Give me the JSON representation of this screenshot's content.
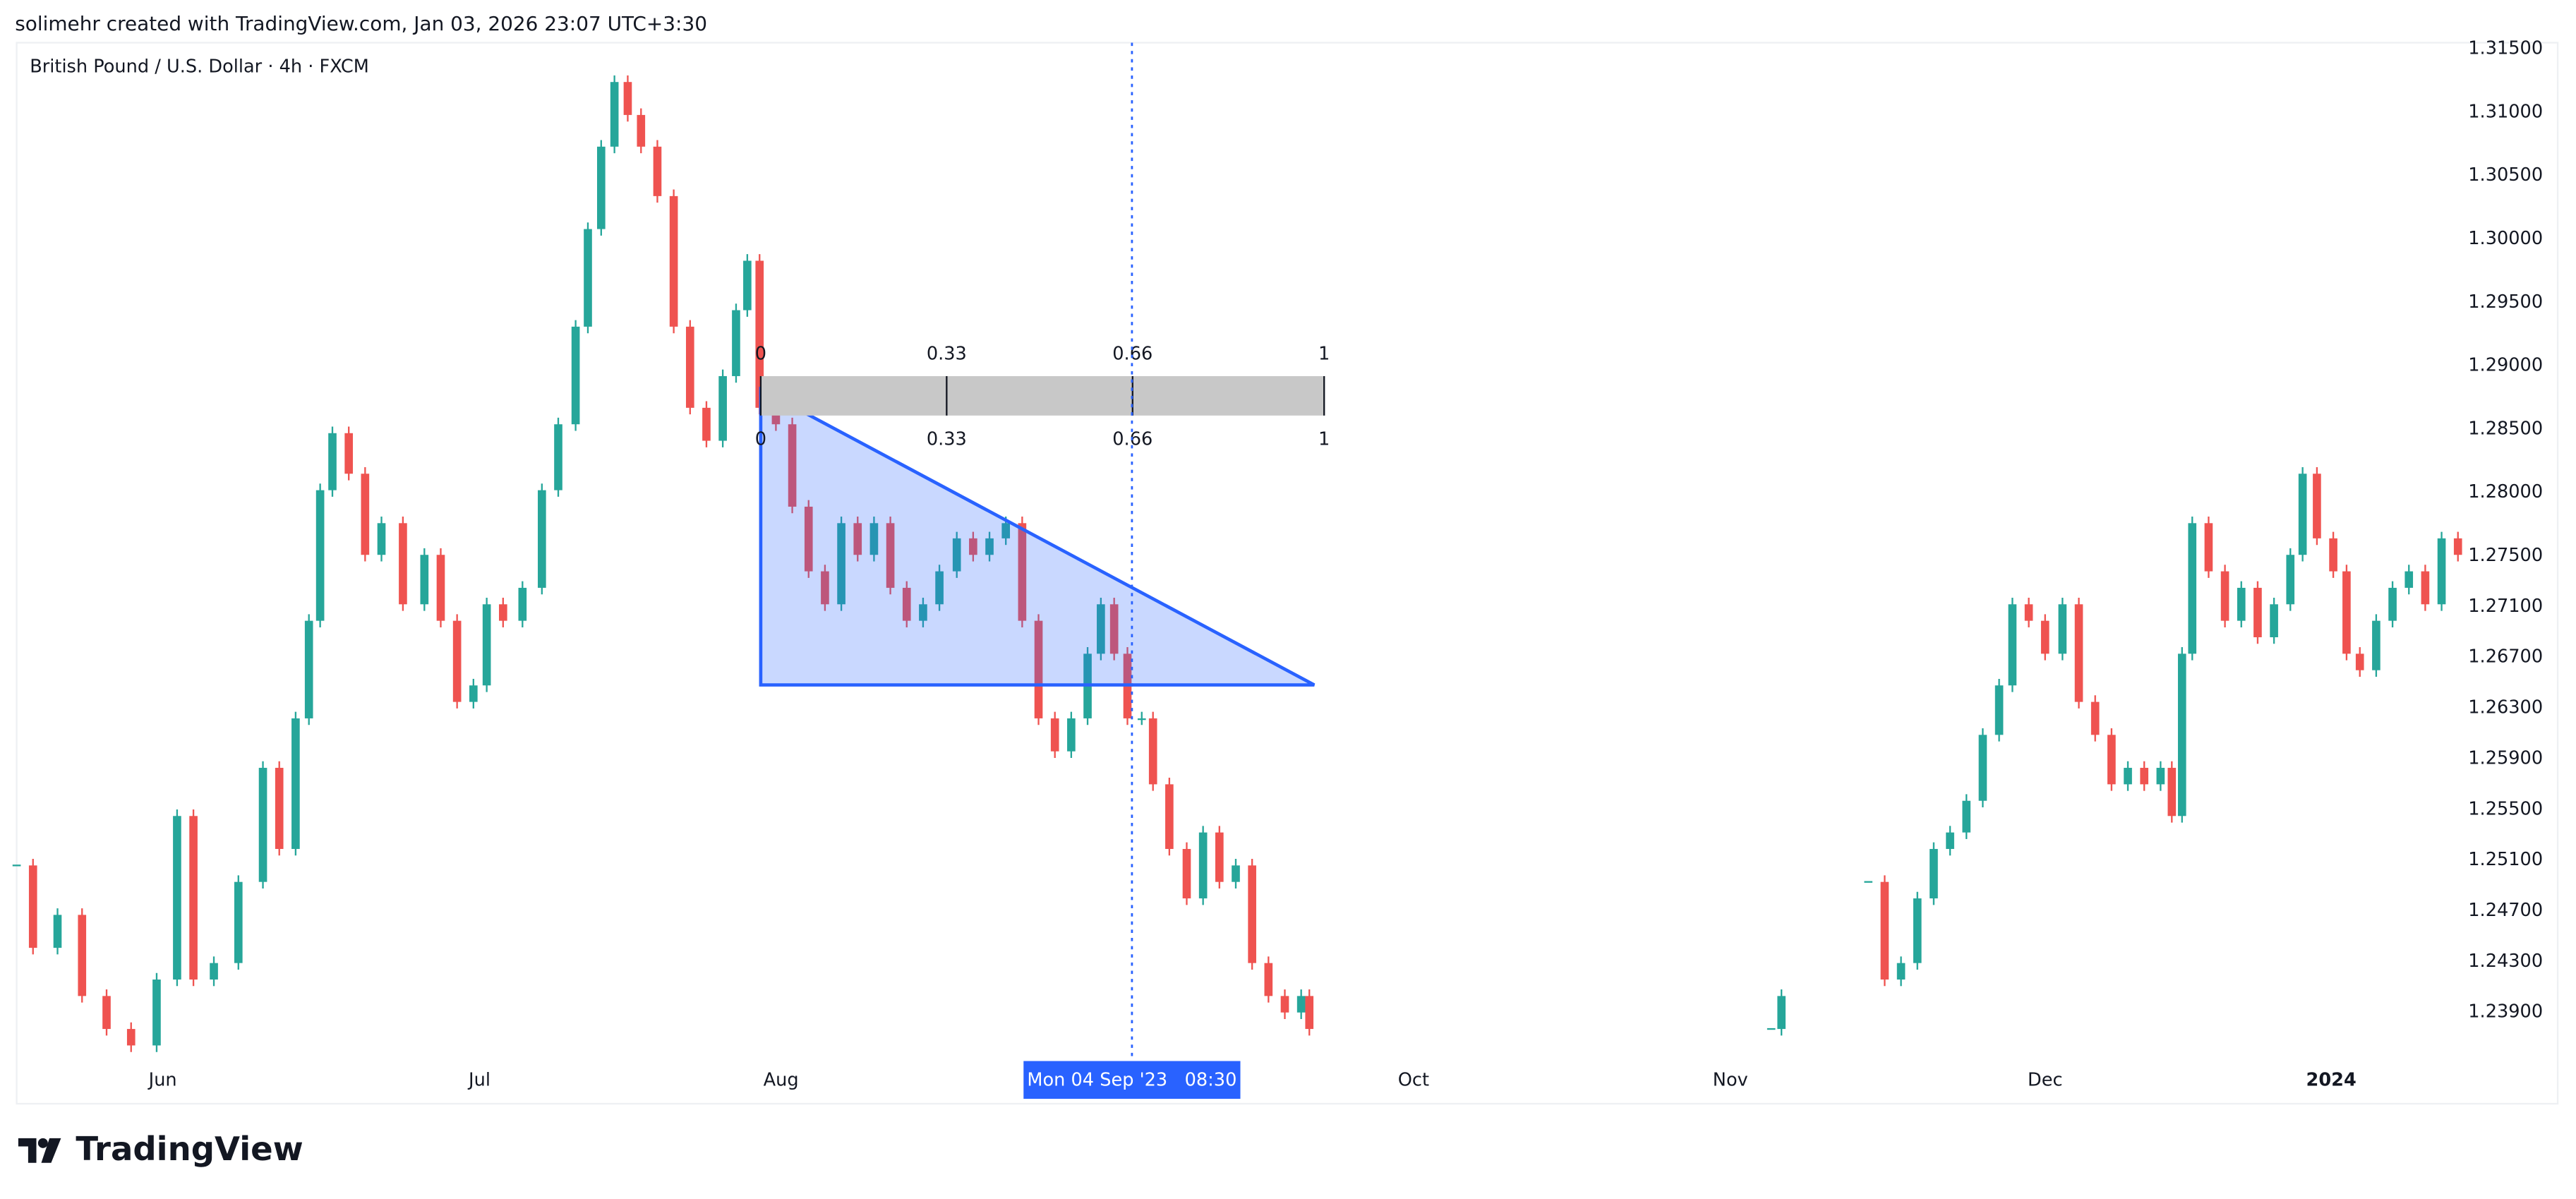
{
  "header": {
    "caption": "solimehr created with TradingView.com, Jan 03, 2026 23:07 UTC+3:30"
  },
  "chart_data": {
    "type": "candlestick",
    "title": "British Pound / U.S. Dollar · 4h · FXCM",
    "up_color": "#26a69a",
    "down_color": "#ef5350",
    "x": [
      -14.3,
      -12.7,
      -10.3,
      -7.9,
      -5.5,
      -3.1,
      -0.6,
      1.4,
      3.0,
      5.0,
      7.4,
      9.8,
      11.4,
      13.0,
      14.3,
      15.4,
      16.6,
      18.2,
      19.8,
      21.4,
      23.5,
      25.6,
      27.2,
      28.8,
      30.4,
      31.7,
      33.3,
      35.2,
      37.1,
      38.7,
      40.4,
      41.6,
      42.9,
      44.2,
      45.5,
      46.8,
      48.4,
      50.0,
      51.6,
      53.2,
      54.8,
      56.1,
      57.2,
      58.4,
      60.0,
      61.6,
      63.2,
      64.8,
      66.4,
      68.0,
      69.6,
      71.2,
      72.8,
      74.4,
      76.0,
      77.7,
      79.3,
      80.9,
      82.5,
      84.1,
      85.7,
      87.3,
      88.9,
      90.5,
      91.8,
      93.1,
      94.4,
      95.8,
      96.9,
      98.5,
      100.2,
      101.8,
      103.4,
      105.0,
      106.6,
      108.2,
      109.8,
      111.4,
      112.2,
      135.0,
      157.4,
      158.4,
      162.0,
      166.9,
      168.5,
      170.1,
      171.7,
      173.3,
      174.9,
      176.5,
      178.1,
      179.7,
      181.0,
      182.6,
      184.2,
      185.9,
      187.5,
      189.1,
      190.7,
      192.3,
      193.9,
      195.5,
      196.6,
      197.6,
      198.6,
      200.2,
      201.8,
      203.4,
      205.0,
      206.6,
      208.2,
      209.4,
      210.8,
      212.4,
      213.7,
      215.0,
      216.6,
      218.2,
      219.8,
      221.4,
      223.0,
      224.6
    ],
    "values": [
      1.2506,
      1.2441,
      1.2467,
      1.2403,
      1.2377,
      1.2364,
      1.2416,
      1.2545,
      1.2416,
      1.2429,
      1.2493,
      1.2583,
      1.2519,
      1.2622,
      1.2699,
      1.2802,
      1.2847,
      1.2815,
      1.2751,
      1.2776,
      1.2712,
      1.2751,
      1.2699,
      1.2635,
      1.2648,
      1.2712,
      1.2699,
      1.2725,
      1.2802,
      1.2854,
      1.2931,
      1.3008,
      1.3073,
      1.3124,
      1.3098,
      1.3073,
      1.3034,
      1.2931,
      1.2867,
      1.2841,
      1.2892,
      1.2944,
      1.2983,
      1.2867,
      1.2854,
      1.2789,
      1.2738,
      1.2712,
      1.2776,
      1.2751,
      1.2776,
      1.2725,
      1.2699,
      1.2712,
      1.2738,
      1.2764,
      1.2751,
      1.2764,
      1.2776,
      1.2699,
      1.2622,
      1.2596,
      1.2622,
      1.2673,
      1.2712,
      1.2673,
      1.2622,
      1.2622,
      1.257,
      1.2519,
      1.248,
      1.2532,
      1.2493,
      1.2506,
      1.2429,
      1.2403,
      1.239,
      1.2403,
      1.2377,
      null,
      1.2377,
      1.2403,
      null,
      1.2493,
      1.2416,
      1.2429,
      1.248,
      1.2519,
      1.2532,
      1.2557,
      1.2609,
      1.2648,
      1.2712,
      1.2699,
      1.2673,
      1.2712,
      1.2635,
      1.2609,
      1.257,
      1.2583,
      1.257,
      1.2583,
      1.2545,
      1.2673,
      1.2776,
      1.2738,
      1.2699,
      1.2725,
      1.2686,
      1.2712,
      1.2751,
      1.2815,
      1.2764,
      1.2738,
      1.2673,
      1.266,
      1.2699,
      1.2725,
      1.2738,
      1.2712,
      1.2764,
      1.2751
    ],
    "xlim": [
      -14.3,
      225.2
    ],
    "xticks": [
      {
        "value": 0,
        "label": "Jun"
      },
      {
        "value": 31.0,
        "label": "Jul"
      },
      {
        "value": 60.5,
        "label": "Aug"
      },
      {
        "value": 122.4,
        "label": "Oct"
      },
      {
        "value": 153.4,
        "label": "Nov"
      },
      {
        "value": 184.2,
        "label": "Dec"
      },
      {
        "value": 212.2,
        "label": "2024"
      }
    ],
    "ylim": [
      1.2353,
      1.3155
    ],
    "yticks": [
      {
        "value": 1.315,
        "label": "1.31500"
      },
      {
        "value": 1.31,
        "label": "1.31000"
      },
      {
        "value": 1.305,
        "label": "1.30500"
      },
      {
        "value": 1.3,
        "label": "1.30000"
      },
      {
        "value": 1.295,
        "label": "1.29500"
      },
      {
        "value": 1.29,
        "label": "1.29000"
      },
      {
        "value": 1.285,
        "label": "1.28500"
      },
      {
        "value": 1.28,
        "label": "1.28000"
      },
      {
        "value": 1.275,
        "label": "1.27500"
      },
      {
        "value": 1.271,
        "label": "1.27100"
      },
      {
        "value": 1.267,
        "label": "1.26700"
      },
      {
        "value": 1.263,
        "label": "1.26300"
      },
      {
        "value": 1.259,
        "label": "1.25900"
      },
      {
        "value": 1.255,
        "label": "1.25500"
      },
      {
        "value": 1.251,
        "label": "1.25100"
      },
      {
        "value": 1.247,
        "label": "1.24700"
      },
      {
        "value": 1.243,
        "label": "1.24300"
      },
      {
        "value": 1.239,
        "label": "1.23900"
      }
    ],
    "crosshair_label": "Mon 04 Sep '23   08:30",
    "time_ruler": {
      "levels": [
        0,
        0.33,
        0.66,
        1
      ]
    }
  },
  "footer": {
    "brand": "TradingView"
  }
}
